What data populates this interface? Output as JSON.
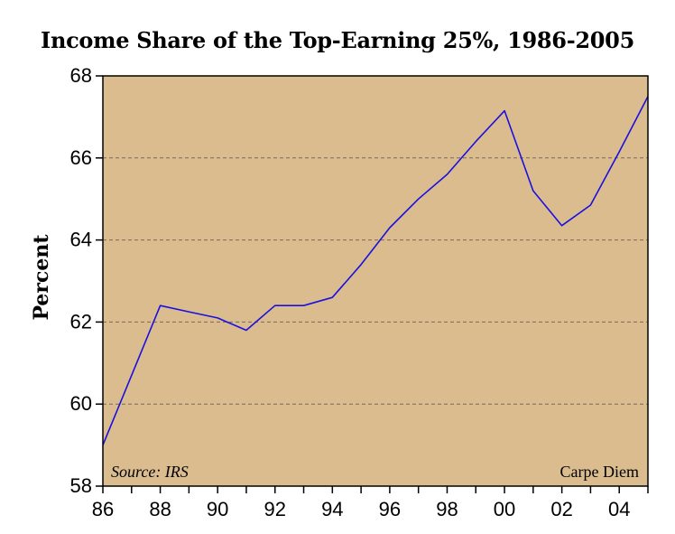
{
  "title": "Income Share of the Top-Earning 25%, 1986-2005",
  "chart_data": {
    "type": "line",
    "title": "Income Share of the Top-Earning 25%, 1986-2005",
    "xlabel": "",
    "ylabel": "Percent",
    "x": [
      1986,
      1987,
      1988,
      1989,
      1990,
      1991,
      1992,
      1993,
      1994,
      1995,
      1996,
      1997,
      1998,
      1999,
      2000,
      2001,
      2002,
      2003,
      2004,
      2005
    ],
    "series": [
      {
        "values": [
          59.0,
          60.7,
          62.4,
          62.25,
          62.1,
          61.8,
          62.4,
          62.4,
          62.6,
          63.4,
          64.3,
          65.0,
          65.6,
          66.4,
          67.15,
          65.2,
          64.35,
          64.85,
          66.15,
          67.5
        ]
      }
    ],
    "xlim": [
      1986,
      2005
    ],
    "ylim": [
      58,
      68
    ],
    "x_tick_labels": [
      "86",
      "88",
      "90",
      "92",
      "94",
      "96",
      "98",
      "00",
      "02",
      "04"
    ],
    "x_tick_values": [
      1986,
      1988,
      1990,
      1992,
      1994,
      1996,
      1998,
      2000,
      2002,
      2004
    ],
    "y_ticks": [
      58,
      60,
      62,
      64,
      66,
      68
    ],
    "grid": "horizontal dashed",
    "annotations": {
      "source": "Source: IRS",
      "credit": "Carpe Diem"
    },
    "colors": {
      "plot_background": "#dbbc8f",
      "line": "#1a10e0",
      "grid": "#7a6a58",
      "axis": "#000000"
    }
  }
}
